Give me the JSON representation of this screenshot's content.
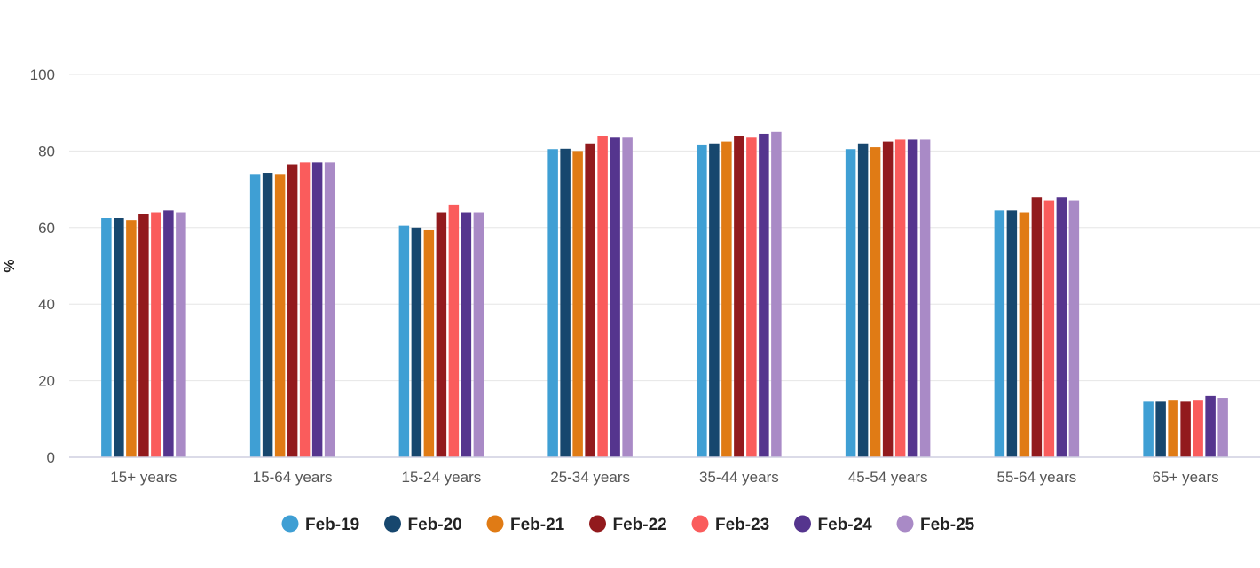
{
  "chart_data": {
    "type": "bar",
    "title": "",
    "xlabel": "",
    "ylabel": "%",
    "ylim": [
      0,
      100
    ],
    "yticks": [
      0,
      20,
      40,
      60,
      80,
      100
    ],
    "grid": true,
    "legend_position": "bottom-center",
    "categories": [
      "15+ years",
      "15-64 years",
      "15-24 years",
      "25-34 years",
      "35-44 years",
      "45-54 years",
      "55-64 years",
      "65+ years"
    ],
    "series": [
      {
        "name": "Feb-19",
        "color": "#3f9fd4",
        "values": [
          62.5,
          74.0,
          60.5,
          80.5,
          81.5,
          80.5,
          64.5,
          14.5
        ]
      },
      {
        "name": "Feb-20",
        "color": "#17476e",
        "values": [
          62.5,
          74.3,
          60.0,
          80.6,
          82.0,
          82.0,
          64.5,
          14.5
        ]
      },
      {
        "name": "Feb-21",
        "color": "#e07b15",
        "values": [
          62.0,
          74.0,
          59.5,
          80.0,
          82.5,
          81.0,
          64.0,
          15.0
        ]
      },
      {
        "name": "Feb-22",
        "color": "#921a1d",
        "values": [
          63.5,
          76.5,
          64.0,
          82.0,
          84.0,
          82.5,
          68.0,
          14.5
        ]
      },
      {
        "name": "Feb-23",
        "color": "#fa5c5c",
        "values": [
          64.0,
          77.0,
          66.0,
          84.0,
          83.5,
          83.0,
          67.0,
          15.0
        ]
      },
      {
        "name": "Feb-24",
        "color": "#55358e",
        "values": [
          64.5,
          77.0,
          64.0,
          83.5,
          84.5,
          83.0,
          68.0,
          16.0
        ]
      },
      {
        "name": "Feb-25",
        "color": "#a98ac6",
        "values": [
          64.0,
          77.0,
          64.0,
          83.5,
          85.0,
          83.0,
          67.0,
          15.5
        ]
      }
    ]
  }
}
